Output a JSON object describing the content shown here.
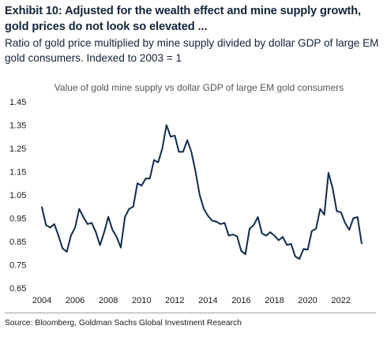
{
  "header": {
    "title": "Exhibit 10: Adjusted for the wealth effect and mine supply growth, gold prices do not look so elevated ...",
    "subtitle": "Ratio of gold price multiplied by mine supply divided by dollar GDP of large EM gold consumers. Indexed to 2003 = 1"
  },
  "footer": {
    "source": "Source: Bloomberg, Goldman Sachs Global Investment Research"
  },
  "chart_data": {
    "type": "line",
    "title": "Value of gold mine supply vs dollar GDP of large EM gold consumers",
    "xlabel": "",
    "ylabel": "",
    "xlim": [
      2004,
      2023.3
    ],
    "ylim": [
      0.65,
      1.45
    ],
    "x_ticks": [
      "2004",
      "2006",
      "2008",
      "2010",
      "2012",
      "2014",
      "2016",
      "2018",
      "2020",
      "2022"
    ],
    "y_ticks": [
      "1.45",
      "1.35",
      "1.25",
      "1.15",
      "1.05",
      "0.95",
      "0.85",
      "0.75",
      "0.65"
    ],
    "grid": false,
    "legend": "none",
    "colors": {
      "line": "#0f2a4e"
    },
    "series": [
      {
        "x": [
          2004.0,
          2004.25,
          2004.5,
          2004.75,
          2005.0,
          2005.25,
          2005.5,
          2005.75,
          2006.0,
          2006.25,
          2006.5,
          2006.75,
          2007.0,
          2007.25,
          2007.5,
          2007.75,
          2008.0,
          2008.25,
          2008.5,
          2008.75,
          2009.0,
          2009.25,
          2009.5,
          2009.75,
          2010.0,
          2010.25,
          2010.5,
          2010.75,
          2011.0,
          2011.25,
          2011.5,
          2011.75,
          2012.0,
          2012.25,
          2012.5,
          2012.75,
          2013.0,
          2013.25,
          2013.5,
          2013.75,
          2014.0,
          2014.25,
          2014.5,
          2014.75,
          2015.0,
          2015.25,
          2015.5,
          2015.75,
          2016.0,
          2016.25,
          2016.5,
          2016.75,
          2017.0,
          2017.25,
          2017.5,
          2017.75,
          2018.0,
          2018.25,
          2018.5,
          2018.75,
          2019.0,
          2019.25,
          2019.5,
          2019.75,
          2020.0,
          2020.25,
          2020.5,
          2020.75,
          2021.0,
          2021.25,
          2021.5,
          2021.75,
          2022.0,
          2022.25,
          2022.5,
          2022.75,
          2023.0,
          2023.25
        ],
        "values": [
          0.997,
          0.92,
          0.91,
          0.925,
          0.875,
          0.82,
          0.806,
          0.875,
          0.91,
          0.99,
          0.955,
          0.925,
          0.93,
          0.89,
          0.834,
          0.89,
          0.956,
          0.9,
          0.87,
          0.824,
          0.955,
          0.99,
          1.0,
          1.1,
          1.09,
          1.12,
          1.12,
          1.2,
          1.19,
          1.25,
          1.35,
          1.3,
          1.305,
          1.235,
          1.235,
          1.285,
          1.235,
          1.15,
          1.05,
          0.99,
          0.96,
          0.94,
          0.935,
          0.925,
          0.93,
          0.875,
          0.88,
          0.872,
          0.81,
          0.795,
          0.905,
          0.92,
          0.955,
          0.885,
          0.875,
          0.89,
          0.875,
          0.855,
          0.87,
          0.835,
          0.84,
          0.786,
          0.775,
          0.818,
          0.815,
          0.895,
          0.905,
          0.99,
          0.965,
          1.145,
          1.08,
          0.98,
          0.975,
          0.93,
          0.9,
          0.95,
          0.955,
          0.842
        ]
      }
    ]
  }
}
